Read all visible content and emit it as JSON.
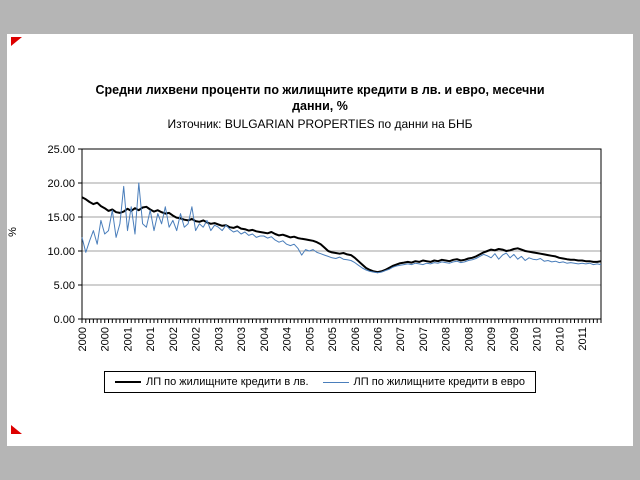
{
  "page": {
    "background": "#b5b5b5"
  },
  "markers": {
    "top": "red-marker",
    "bottom": "red-marker"
  },
  "chart_data": {
    "type": "line",
    "title": "Средни лихвени проценти по жилищните кредити в лв. и евро, месечни данни, %",
    "title_lines": [
      "Средни лихвени проценти по жилищните кредити в лв. и евро, месечни",
      "данни, %"
    ],
    "subtitle": "Източник: BULGARIAN PROPERTIES по данни на БНБ",
    "ylabel": "%",
    "ylim": [
      0,
      25
    ],
    "ytick_step": 5,
    "ytick_labels": [
      "0.00",
      "5.00",
      "10.00",
      "15.00",
      "20.00",
      "25.00"
    ],
    "grid": "horizontal",
    "legend_position": "bottom",
    "x_start": "2000-01",
    "x_end": "2011-06",
    "x_label_every_months": 6,
    "x_tick_labels": [
      "2000",
      "2000",
      "2001",
      "2001",
      "2002",
      "2002",
      "2003",
      "2003",
      "2004",
      "2004",
      "2005",
      "2005",
      "2006",
      "2006",
      "2007",
      "2007",
      "2008",
      "2008",
      "2009",
      "2009",
      "2010",
      "2010",
      "2011"
    ],
    "series": [
      {
        "name": "ЛП по жилищните кредити в лв.",
        "color": "#000000",
        "width": 2,
        "values": [
          17.9,
          17.6,
          17.2,
          16.9,
          17.1,
          16.6,
          16.3,
          15.9,
          16.1,
          15.7,
          15.6,
          15.8,
          16.2,
          15.9,
          16.3,
          16.0,
          16.4,
          16.5,
          16.1,
          15.8,
          16.0,
          15.7,
          15.5,
          15.6,
          15.2,
          14.9,
          14.8,
          14.6,
          14.5,
          14.7,
          14.4,
          14.3,
          14.5,
          14.2,
          14.0,
          14.1,
          13.9,
          13.7,
          13.8,
          13.5,
          13.4,
          13.6,
          13.3,
          13.2,
          13.0,
          13.1,
          12.9,
          12.8,
          12.7,
          12.6,
          12.8,
          12.5,
          12.3,
          12.4,
          12.2,
          12.0,
          12.1,
          11.9,
          11.8,
          11.7,
          11.6,
          11.5,
          11.3,
          11.0,
          10.5,
          10.0,
          9.8,
          9.7,
          9.6,
          9.7,
          9.5,
          9.4,
          9.0,
          8.5,
          8.0,
          7.5,
          7.2,
          7.0,
          6.9,
          7.0,
          7.2,
          7.5,
          7.8,
          8.0,
          8.2,
          8.3,
          8.4,
          8.3,
          8.5,
          8.4,
          8.6,
          8.5,
          8.4,
          8.6,
          8.5,
          8.7,
          8.6,
          8.5,
          8.7,
          8.8,
          8.6,
          8.7,
          8.9,
          9.0,
          9.2,
          9.5,
          9.8,
          10.0,
          10.2,
          10.1,
          10.3,
          10.2,
          10.0,
          10.1,
          10.3,
          10.4,
          10.2,
          10.0,
          9.9,
          9.8,
          9.7,
          9.6,
          9.5,
          9.4,
          9.3,
          9.2,
          9.0,
          8.9,
          8.8,
          8.7,
          8.7,
          8.6,
          8.6,
          8.5,
          8.5,
          8.4,
          8.4,
          8.5
        ]
      },
      {
        "name": "ЛП по жилищните кредити в евро",
        "color": "#4a7ebb",
        "width": 1,
        "values": [
          12.0,
          9.8,
          11.5,
          13.0,
          11.0,
          14.5,
          12.5,
          13.0,
          16.0,
          12.0,
          14.0,
          19.5,
          13.0,
          16.5,
          12.5,
          20.0,
          14.0,
          13.5,
          16.0,
          13.0,
          15.5,
          14.0,
          16.5,
          13.5,
          14.5,
          13.0,
          15.5,
          13.5,
          14.0,
          16.5,
          13.0,
          14.0,
          13.5,
          14.5,
          13.0,
          13.8,
          13.5,
          13.0,
          13.8,
          13.2,
          12.8,
          13.0,
          12.5,
          12.8,
          12.3,
          12.5,
          12.0,
          12.2,
          12.2,
          11.9,
          12.1,
          11.6,
          11.3,
          11.5,
          11.0,
          10.8,
          11.0,
          10.4,
          9.4,
          10.2,
          10.0,
          10.2,
          9.8,
          9.6,
          9.4,
          9.2,
          9.0,
          8.9,
          9.1,
          8.8,
          8.7,
          8.6,
          8.3,
          7.9,
          7.5,
          7.2,
          7.0,
          6.9,
          6.8,
          6.9,
          7.1,
          7.3,
          7.6,
          7.8,
          7.9,
          8.0,
          8.1,
          8.0,
          8.2,
          8.1,
          8.0,
          8.2,
          8.1,
          8.3,
          8.2,
          8.4,
          8.3,
          8.2,
          8.4,
          8.5,
          8.3,
          8.4,
          8.6,
          8.7,
          8.9,
          9.2,
          9.5,
          9.3,
          9.0,
          9.6,
          8.8,
          9.4,
          9.7,
          9.0,
          9.5,
          8.8,
          9.2,
          8.6,
          9.0,
          8.8,
          8.7,
          8.9,
          8.5,
          8.6,
          8.4,
          8.5,
          8.3,
          8.4,
          8.2,
          8.3,
          8.2,
          8.1,
          8.2,
          8.1,
          8.2,
          8.0,
          8.1,
          8.0
        ]
      }
    ]
  }
}
